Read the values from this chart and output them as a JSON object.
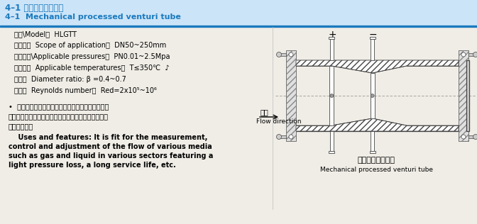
{
  "title_cn": "4–1 机械加工文丘里管",
  "title_en": "4–1  Mechanical processed venturi tube",
  "title_color": "#1a7abf",
  "title_bg": "#cce4f7",
  "header_line_color": "#1a7abf",
  "bg_color": "#f0ede6",
  "params": [
    "型号\\Model：  HLGTT",
    "适用范围  Scope of application：  DN50~250mm",
    "适用压力\\Applicable pressures：  PN0.01~2.5Mpa",
    "适用温度  Applicable temperatures：  T≤350℃  ♪",
    "直径比  Diameter ratio: β =0.4~0.7",
    "雷诺数  Reynolds number：  Red=2x10⁵~10⁶"
  ],
  "desc_cn1": "•  用途及特点：适用于各种行业中气体、液体等介质",
  "desc_cn2": "的流量测量、控制和调节。它具有压力损失小，使用寿",
  "desc_cn3": "命长等特点。",
  "desc_en1": "    Uses and features: It is fit for the measurement,",
  "desc_en2": "control and adjustment of the flow of various media",
  "desc_en3": "such as gas and liquid in various sectors featuring a",
  "desc_en4": "light pressure loss, a long service life, etc.",
  "diagram_label_cn": "机械加工文丘里管",
  "diagram_label_en": "Mechanical processed venturi tube",
  "flow_cn": "流向",
  "flow_en": "Flow direction",
  "plus": "+",
  "minus": "−"
}
